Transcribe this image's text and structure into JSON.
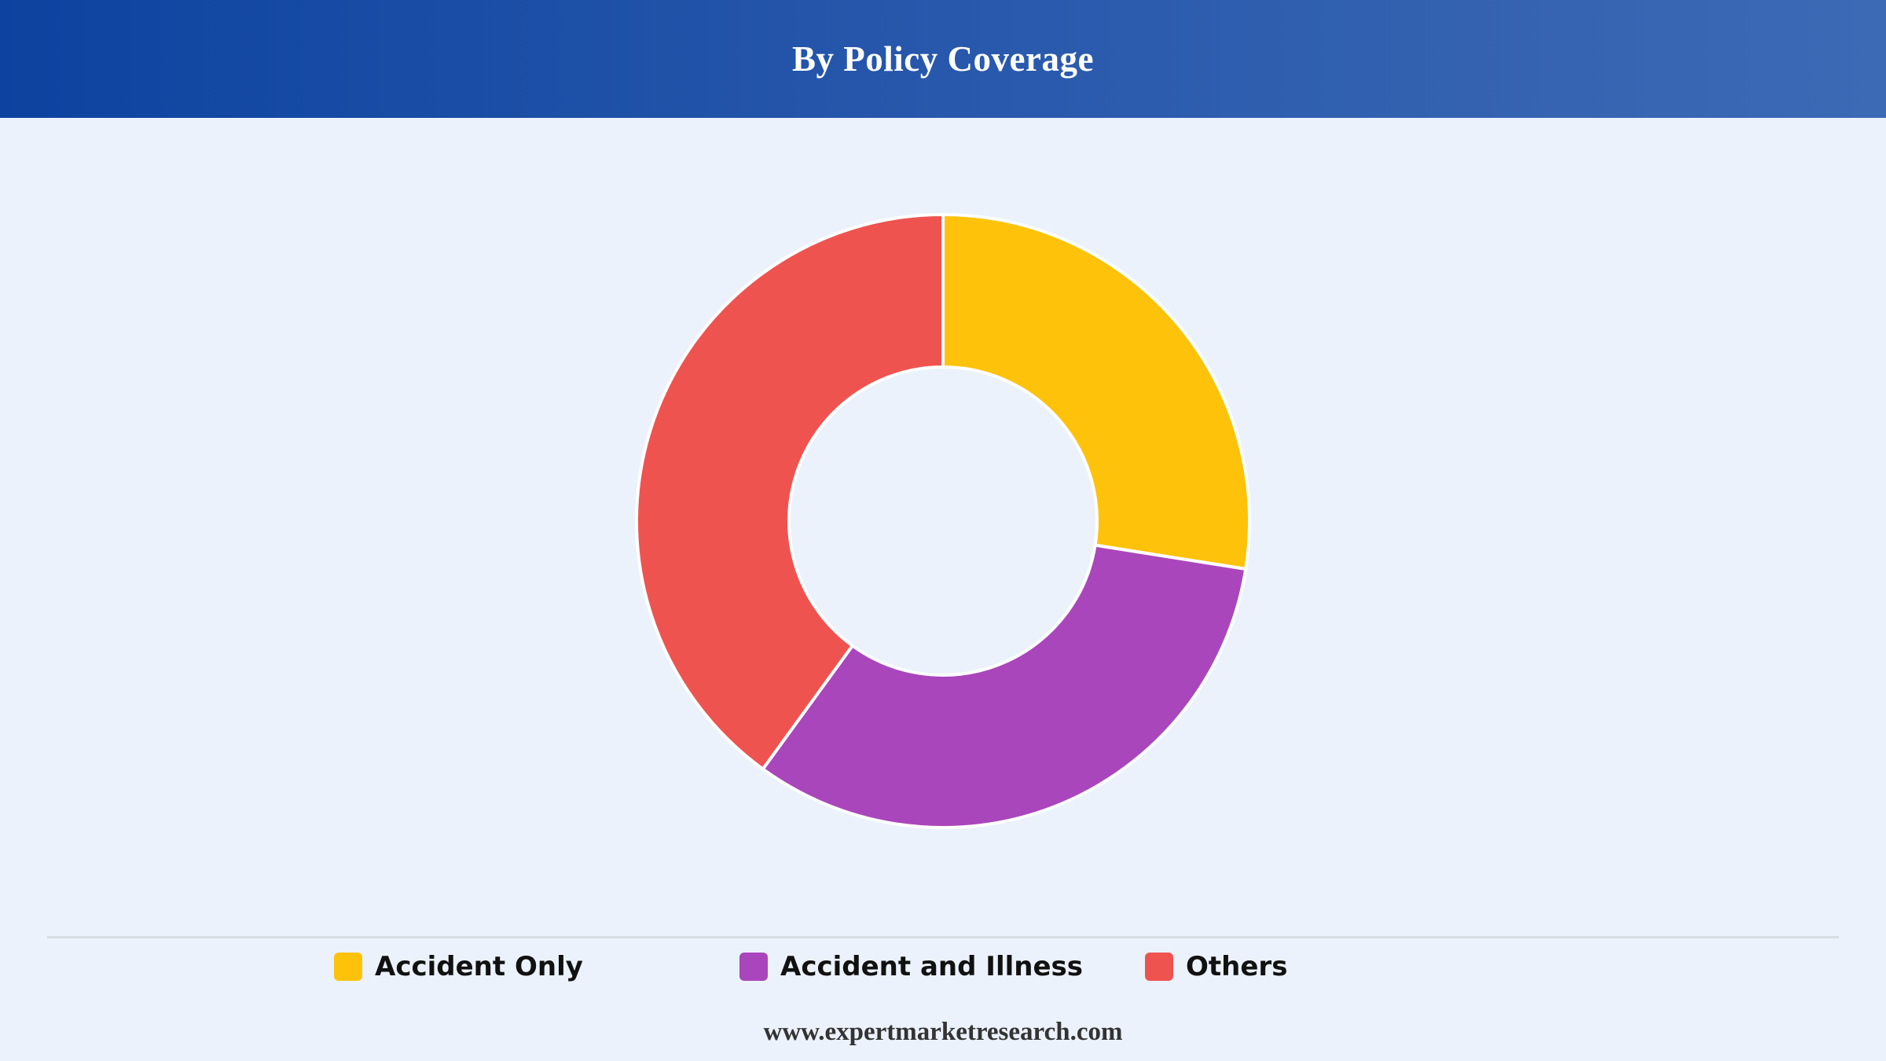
{
  "header": {
    "title": "By Policy Coverage"
  },
  "chart_data": {
    "type": "pie",
    "title": "By Policy Coverage",
    "donut": true,
    "legend_position": "bottom",
    "slices": [
      {
        "label": "Accident Only",
        "value": 27.5,
        "color": "#ffc20a"
      },
      {
        "label": "Accident and Illness",
        "value": 32.5,
        "color": "#aa46bb"
      },
      {
        "label": "Others",
        "value": 40.0,
        "color": "#ef5350"
      }
    ]
  },
  "footer": {
    "source": "www.expertmarketresearch.com"
  }
}
